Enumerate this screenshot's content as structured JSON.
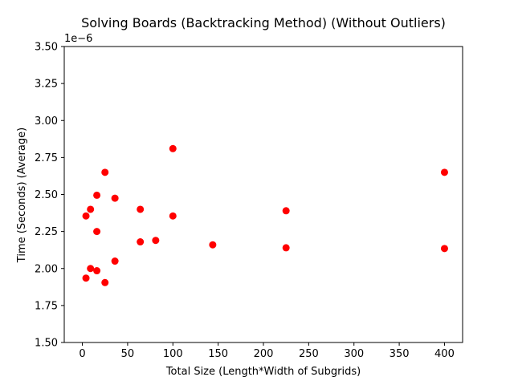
{
  "chart_data": {
    "type": "scatter",
    "title": "Solving Boards (Backtracking Method) (Without Outliers)",
    "xlabel": "Total Size (Length*Width of Subgrids)",
    "ylabel": "Time (Seconds) (Average)",
    "y_offset_label": "1e−6",
    "xlim": [
      -20,
      420
    ],
    "ylim": [
      1.5,
      3.5
    ],
    "xticks": [
      0,
      50,
      100,
      150,
      200,
      250,
      300,
      350,
      400
    ],
    "xtick_labels": [
      "0",
      "50",
      "100",
      "150",
      "200",
      "250",
      "300",
      "350",
      "400"
    ],
    "yticks": [
      1.5,
      1.75,
      2.0,
      2.25,
      2.5,
      2.75,
      3.0,
      3.25,
      3.5
    ],
    "ytick_labels": [
      "1.50",
      "1.75",
      "2.00",
      "2.25",
      "2.50",
      "2.75",
      "3.00",
      "3.25",
      "3.50"
    ],
    "grid": false,
    "marker_color": "#ff0000",
    "series": [
      {
        "points": [
          {
            "x": 4,
            "y": 2.355
          },
          {
            "x": 4,
            "y": 1.935
          },
          {
            "x": 9,
            "y": 2.4
          },
          {
            "x": 9,
            "y": 2.0
          },
          {
            "x": 16,
            "y": 2.495
          },
          {
            "x": 16,
            "y": 2.25
          },
          {
            "x": 16,
            "y": 1.985
          },
          {
            "x": 25,
            "y": 2.65
          },
          {
            "x": 25,
            "y": 1.905
          },
          {
            "x": 36,
            "y": 2.475
          },
          {
            "x": 36,
            "y": 2.05
          },
          {
            "x": 64,
            "y": 2.4
          },
          {
            "x": 64,
            "y": 2.18
          },
          {
            "x": 81,
            "y": 2.19
          },
          {
            "x": 100,
            "y": 2.81
          },
          {
            "x": 100,
            "y": 2.355
          },
          {
            "x": 144,
            "y": 2.16
          },
          {
            "x": 225,
            "y": 2.39
          },
          {
            "x": 225,
            "y": 2.14
          },
          {
            "x": 400,
            "y": 2.65
          },
          {
            "x": 400,
            "y": 2.135
          }
        ]
      }
    ]
  }
}
